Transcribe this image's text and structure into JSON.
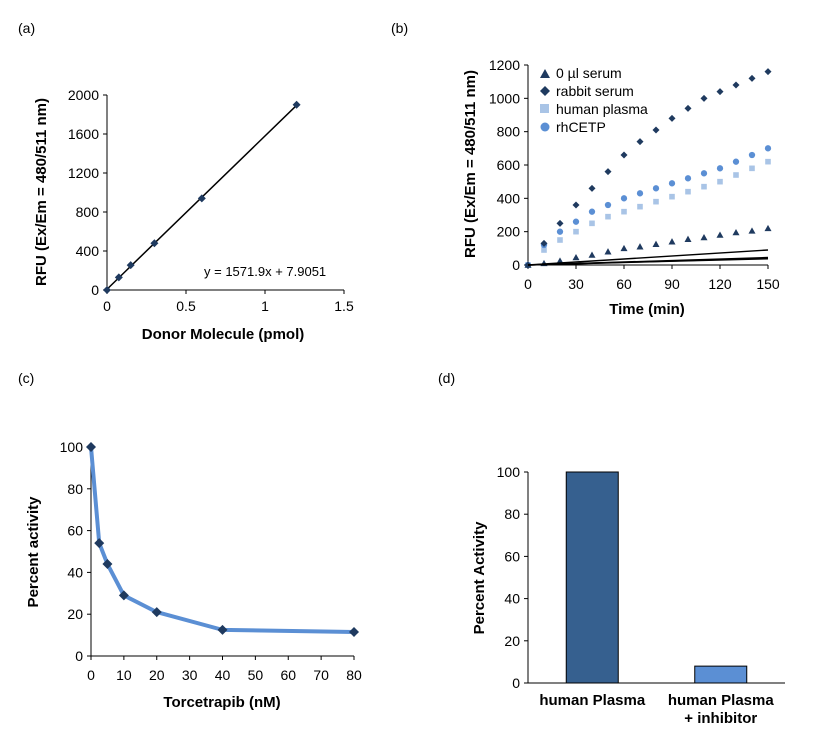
{
  "chart_data": [
    {
      "panel_label": "(a)",
      "type": "scatter",
      "xlabel": "Donor Molecule (pmol)",
      "ylabel": "RFU (Ex/Em = 480/511 nm)",
      "xlim": [
        0,
        1.5
      ],
      "ylim": [
        0,
        2000
      ],
      "x_ticks": [
        "0",
        "0.5",
        "1",
        "1.5"
      ],
      "y_ticks": [
        "0",
        "400",
        "800",
        "1200",
        "1600",
        "2000"
      ],
      "x_tick_values": [
        0,
        0.5,
        1,
        1.5
      ],
      "y_tick_values": [
        0,
        400,
        800,
        1200,
        1600,
        2000
      ],
      "series": [
        {
          "color": "#1f3a5f",
          "x": [
            0,
            0.075,
            0.15,
            0.3,
            0.6,
            1.2
          ],
          "y": [
            0,
            130,
            255,
            480,
            940,
            1900
          ]
        }
      ],
      "trendline": {
        "slope": 1571.9,
        "intercept": 7.9051,
        "x_range": [
          0,
          1.2
        ]
      },
      "annotation": "y = 1571.9x + 7.9051",
      "grid": false
    },
    {
      "panel_label": "(b)",
      "type": "scatter",
      "xlabel": "Time (min)",
      "ylabel": "RFU (Ex/Em = 480/511 nm)",
      "xlim": [
        0,
        150
      ],
      "ylim": [
        0,
        1200
      ],
      "x_ticks": [
        "0",
        "30",
        "60",
        "90",
        "120",
        "150"
      ],
      "y_ticks": [
        "0",
        "200",
        "400",
        "600",
        "800",
        "1000",
        "1200"
      ],
      "x_tick_values": [
        0,
        30,
        60,
        90,
        120,
        150
      ],
      "y_tick_values": [
        0,
        200,
        400,
        600,
        800,
        1000,
        1200
      ],
      "legend_position": "top-left",
      "series": [
        {
          "name": "0 µl serum",
          "marker": "triangle",
          "color": "#1f3a5f",
          "x": [
            0,
            10,
            20,
            30,
            40,
            50,
            60,
            70,
            80,
            90,
            100,
            110,
            120,
            130,
            140,
            150
          ],
          "y": [
            0,
            10,
            25,
            45,
            60,
            80,
            100,
            110,
            125,
            140,
            155,
            165,
            180,
            195,
            205,
            220
          ]
        },
        {
          "name": "rabbit serum",
          "marker": "diamond",
          "color": "#1f3a5f",
          "x": [
            0,
            10,
            20,
            30,
            40,
            50,
            60,
            70,
            80,
            90,
            100,
            110,
            120,
            130,
            140,
            150
          ],
          "y": [
            0,
            130,
            250,
            360,
            460,
            560,
            660,
            740,
            810,
            880,
            940,
            1000,
            1040,
            1080,
            1120,
            1160
          ]
        },
        {
          "name": "human plasma",
          "marker": "square",
          "color": "#a9c4e6",
          "x": [
            0,
            10,
            20,
            30,
            40,
            50,
            60,
            70,
            80,
            90,
            100,
            110,
            120,
            130,
            140,
            150
          ],
          "y": [
            0,
            90,
            150,
            200,
            250,
            290,
            320,
            350,
            380,
            410,
            440,
            470,
            500,
            540,
            580,
            620
          ]
        },
        {
          "name": "rhCETP",
          "marker": "circle",
          "color": "#5b8fd4",
          "x": [
            0,
            10,
            20,
            30,
            40,
            50,
            60,
            70,
            80,
            90,
            100,
            110,
            120,
            130,
            140,
            150
          ],
          "y": [
            0,
            120,
            200,
            260,
            320,
            360,
            400,
            430,
            460,
            490,
            520,
            550,
            580,
            620,
            660,
            700
          ]
        }
      ],
      "trendlines": [
        {
          "slope": 0.25,
          "intercept": 0,
          "x_range": [
            0,
            150
          ]
        },
        {
          "slope": 0.6,
          "intercept": 0,
          "x_range": [
            0,
            150
          ]
        },
        {
          "slope": 0.27,
          "intercept": 0,
          "x_range": [
            0,
            150
          ]
        },
        {
          "slope": 0.3,
          "intercept": 0,
          "x_range": [
            0,
            150
          ]
        }
      ],
      "grid": false
    },
    {
      "panel_label": "(c)",
      "type": "line",
      "xlabel": "Torcetrapib (nM)",
      "ylabel": "Percent activity",
      "xlim": [
        0,
        80
      ],
      "ylim": [
        0,
        100
      ],
      "x_ticks": [
        "0",
        "10",
        "20",
        "30",
        "40",
        "50",
        "60",
        "70",
        "80"
      ],
      "y_ticks": [
        "0",
        "20",
        "40",
        "60",
        "80",
        "100"
      ],
      "x_tick_values": [
        0,
        10,
        20,
        30,
        40,
        50,
        60,
        70,
        80
      ],
      "y_tick_values": [
        0,
        20,
        40,
        60,
        80,
        100
      ],
      "series": [
        {
          "line_color": "#5b8fd4",
          "marker_color": "#1f3a5f",
          "x": [
            0,
            2.5,
            5,
            10,
            20,
            40,
            80
          ],
          "y": [
            100,
            54,
            44,
            29,
            21,
            12.5,
            11.5
          ]
        }
      ],
      "grid": false
    },
    {
      "panel_label": "(d)",
      "type": "bar",
      "ylabel": "Percent  Activity",
      "ylim": [
        0,
        100
      ],
      "y_ticks": [
        "0",
        "20",
        "40",
        "60",
        "80",
        "100"
      ],
      "y_tick_values": [
        0,
        20,
        40,
        60,
        80,
        100
      ],
      "categories": [
        [
          "human Plasma"
        ],
        [
          "human Plasma",
          "+ inhibitor"
        ]
      ],
      "values": [
        100,
        8
      ],
      "bar_colors": [
        "#36608f",
        "#5b8fd4"
      ],
      "grid": false
    }
  ]
}
